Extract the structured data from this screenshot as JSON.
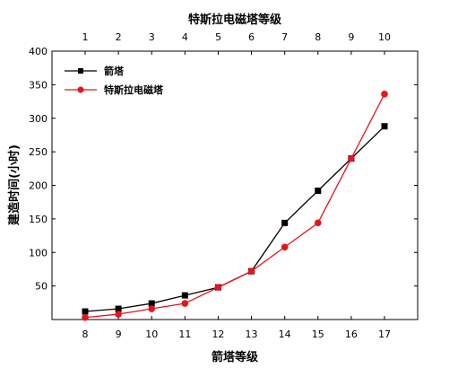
{
  "chart_data": {
    "type": "line",
    "title_top": "特斯拉电磁塔等级",
    "xlabel": "箭塔等级",
    "ylabel": "建造时间(小时)",
    "x_bottom": [
      8,
      9,
      10,
      11,
      12,
      13,
      14,
      15,
      16,
      17
    ],
    "x_top": [
      1,
      2,
      3,
      4,
      5,
      6,
      7,
      8,
      9,
      10
    ],
    "ylim": [
      0,
      400
    ],
    "y_ticks": [
      50,
      100,
      150,
      200,
      250,
      300,
      350,
      400
    ],
    "grid": false,
    "legend_position": "top-left",
    "series": [
      {
        "name": "箭塔",
        "color": "#000000",
        "marker": "square",
        "values": [
          12,
          16,
          24,
          36,
          48,
          72,
          144,
          192,
          240,
          288
        ]
      },
      {
        "name": "特斯拉电磁塔",
        "color": "#e8141c",
        "marker": "circle",
        "values": [
          3,
          8,
          16,
          24,
          48,
          72,
          108,
          144,
          240,
          336
        ]
      }
    ]
  }
}
